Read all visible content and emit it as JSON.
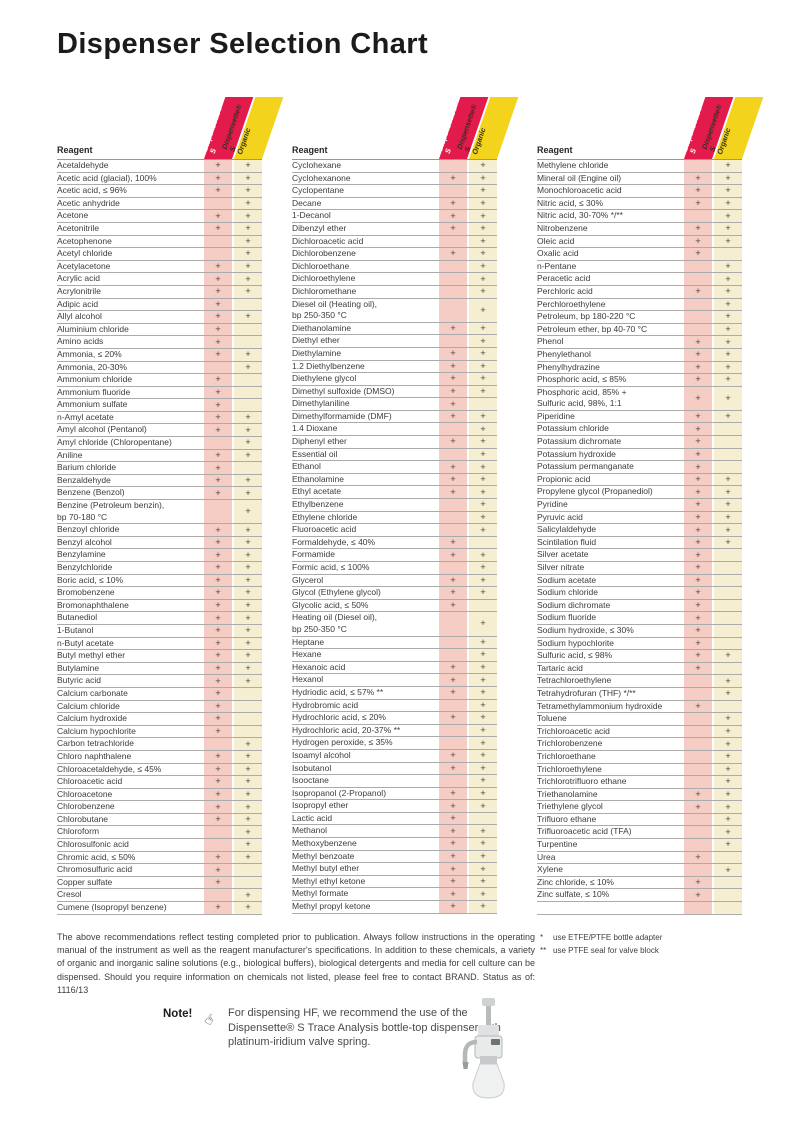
{
  "page": {
    "title": "Dispenser Selection Chart",
    "reagent_header": "Reagent",
    "banner_red": "Dispensette® S",
    "banner_yellow": "Dispensette® S\nOrganic",
    "footer_paragraph": "The above recommendations reflect testing completed prior to publication. Always follow instructions in the operating manual of the instrument as well as the reagent manufacturer's specifications. In addition to these chemicals, a variety of organic and inorganic saline solutions (e.g., biological buffers), biological detergents and media for cell culture can be dispensed. Should you require information on chemicals not listed, please feel free to contact BRAND. Status as of: 1116/13",
    "footnotes": [
      {
        "marker": "*",
        "text": "use ETFE/PTFE bottle adapter"
      },
      {
        "marker": "**",
        "text": "use PTFE seal for valve block"
      }
    ],
    "note": {
      "label": "Note!",
      "text": "For dispensing HF, we recommend the use of the Dispensette® S Trace Analysis bottle-top dispenser with platinum-iridium valve spring."
    }
  },
  "colors": {
    "banner_red": "#e31b4c",
    "banner_yellow": "#f3d31c",
    "tint_red": "#f5cdc5",
    "tint_yellow": "#f5eed1"
  },
  "tables": [
    {
      "rows": [
        [
          "Acetaldehyde",
          "+",
          "+"
        ],
        [
          "Acetic acid (glacial), 100%",
          "+",
          "+"
        ],
        [
          "Acetic acid, ≤ 96%",
          "+",
          "+"
        ],
        [
          "Acetic anhydride",
          "",
          "+"
        ],
        [
          "Acetone",
          "+",
          "+"
        ],
        [
          "Acetonitrile",
          "+",
          "+"
        ],
        [
          "Acetophenone",
          "",
          "+"
        ],
        [
          "Acetyl chloride",
          "",
          "+"
        ],
        [
          "Acetylacetone",
          "+",
          "+"
        ],
        [
          "Acrylic acid",
          "+",
          "+"
        ],
        [
          "Acrylonitrile",
          "+",
          "+"
        ],
        [
          "Adipic acid",
          "+",
          ""
        ],
        [
          "Allyl alcohol",
          "+",
          "+"
        ],
        [
          "Aluminium chloride",
          "+",
          ""
        ],
        [
          "Amino acids",
          "+",
          ""
        ],
        [
          "Ammonia, ≤ 20%",
          "+",
          "+"
        ],
        [
          "Ammonia, 20-30%",
          "",
          "+"
        ],
        [
          "Ammonium chloride",
          "+",
          ""
        ],
        [
          "Ammonium fluoride",
          "+",
          ""
        ],
        [
          "Ammonium sulfate",
          "+",
          ""
        ],
        [
          "n-Amyl acetate",
          "+",
          "+"
        ],
        [
          "Amyl alcohol (Pentanol)",
          "+",
          "+"
        ],
        [
          "Amyl chloride (Chloropentane)",
          "",
          "+"
        ],
        [
          "Aniline",
          "+",
          "+"
        ],
        [
          "Barium chloride",
          "+",
          ""
        ],
        [
          "Benzaldehyde",
          "+",
          "+"
        ],
        [
          "Benzene (Benzol)",
          "+",
          "+"
        ],
        [
          "Benzine (Petroleum benzin),\nbp 70-180 °C",
          "",
          "+"
        ],
        [
          "Benzoyl chloride",
          "+",
          "+"
        ],
        [
          "Benzyl alcohol",
          "+",
          "+"
        ],
        [
          "Benzylamine",
          "+",
          "+"
        ],
        [
          "Benzylchloride",
          "+",
          "+"
        ],
        [
          "Boric acid, ≤ 10%",
          "+",
          "+"
        ],
        [
          "Bromobenzene",
          "+",
          "+"
        ],
        [
          "Bromonaphthalene",
          "+",
          "+"
        ],
        [
          "Butanediol",
          "+",
          "+"
        ],
        [
          "1-Butanol",
          "+",
          "+"
        ],
        [
          "n-Butyl acetate",
          "+",
          "+"
        ],
        [
          "Butyl methyl ether",
          "+",
          "+"
        ],
        [
          "Butylamine",
          "+",
          "+"
        ],
        [
          "Butyric acid",
          "+",
          "+"
        ],
        [
          "Calcium carbonate",
          "+",
          ""
        ],
        [
          "Calcium chloride",
          "+",
          ""
        ],
        [
          "Calcium hydroxide",
          "+",
          ""
        ],
        [
          "Calcium hypochlorite",
          "+",
          ""
        ],
        [
          "Carbon tetrachloride",
          "",
          "+"
        ],
        [
          "Chloro naphthalene",
          "+",
          "+"
        ],
        [
          "Chloroacetaldehyde, ≤ 45%",
          "+",
          "+"
        ],
        [
          "Chloroacetic acid",
          "+",
          "+"
        ],
        [
          "Chloroacetone",
          "+",
          "+"
        ],
        [
          "Chlorobenzene",
          "+",
          "+"
        ],
        [
          "Chlorobutane",
          "+",
          "+"
        ],
        [
          "Chloroform",
          "",
          "+"
        ],
        [
          "Chlorosulfonic acid",
          "",
          "+"
        ],
        [
          "Chromic acid, ≤ 50%",
          "+",
          "+"
        ],
        [
          "Chromosulfuric acid",
          "+",
          ""
        ],
        [
          "Copper sulfate",
          "+",
          ""
        ],
        [
          "Cresol",
          "",
          "+"
        ],
        [
          "Cumene (Isopropyl benzene)",
          "+",
          "+"
        ]
      ]
    },
    {
      "rows": [
        [
          "Cyclohexane",
          "",
          "+"
        ],
        [
          "Cyclohexanone",
          "+",
          "+"
        ],
        [
          "Cyclopentane",
          "",
          "+"
        ],
        [
          "Decane",
          "+",
          "+"
        ],
        [
          "1-Decanol",
          "+",
          "+"
        ],
        [
          "Dibenzyl ether",
          "+",
          "+"
        ],
        [
          "Dichloroacetic acid",
          "",
          "+"
        ],
        [
          "Dichlorobenzene",
          "+",
          "+"
        ],
        [
          "Dichloroethane",
          "",
          "+"
        ],
        [
          "Dichloroethylene",
          "",
          "+"
        ],
        [
          "Dichloromethane",
          "",
          "+"
        ],
        [
          "Diesel oil (Heating oil),\nbp 250-350 °C",
          "",
          "+"
        ],
        [
          "Diethanolamine",
          "+",
          "+"
        ],
        [
          "Diethyl ether",
          "",
          "+"
        ],
        [
          "Diethylamine",
          "+",
          "+"
        ],
        [
          "1.2 Diethylbenzene",
          "+",
          "+"
        ],
        [
          "Diethylene glycol",
          "+",
          "+"
        ],
        [
          "Dimethyl sulfoxide (DMSO)",
          "+",
          "+"
        ],
        [
          "Dimethylaniline",
          "+",
          ""
        ],
        [
          "Dimethylformamide (DMF)",
          "+",
          "+"
        ],
        [
          "1.4 Dioxane",
          "",
          "+"
        ],
        [
          "Diphenyl ether",
          "+",
          "+"
        ],
        [
          "Essential oil",
          "",
          "+"
        ],
        [
          "Ethanol",
          "+",
          "+"
        ],
        [
          "Ethanolamine",
          "+",
          "+"
        ],
        [
          "Ethyl acetate",
          "+",
          "+"
        ],
        [
          "Ethylbenzene",
          "",
          "+"
        ],
        [
          "Ethylene chloride",
          "",
          "+"
        ],
        [
          "Fluoroacetic acid",
          "",
          "+"
        ],
        [
          "Formaldehyde, ≤ 40%",
          "+",
          ""
        ],
        [
          "Formamide",
          "+",
          "+"
        ],
        [
          "Formic acid, ≤ 100%",
          "",
          "+"
        ],
        [
          "Glycerol",
          "+",
          "+"
        ],
        [
          "Glycol (Ethylene glycol)",
          "+",
          "+"
        ],
        [
          "Glycolic acid, ≤ 50%",
          "+",
          ""
        ],
        [
          "Heating oil (Diesel oil),\nbp 250-350 °C",
          "",
          "+"
        ],
        [
          "Heptane",
          "",
          "+"
        ],
        [
          "Hexane",
          "",
          "+"
        ],
        [
          "Hexanoic acid",
          "+",
          "+"
        ],
        [
          "Hexanol",
          "+",
          "+"
        ],
        [
          "Hydriodic acid, ≤ 57% **",
          "+",
          "+"
        ],
        [
          "Hydrobromic acid",
          "",
          "+"
        ],
        [
          "Hydrochloric acid, ≤ 20%",
          "+",
          "+"
        ],
        [
          "Hydrochloric acid, 20-37% **",
          "",
          "+"
        ],
        [
          "Hydrogen peroxide, ≤ 35%",
          "",
          "+"
        ],
        [
          "Isoamyl alcohol",
          "+",
          "+"
        ],
        [
          "Isobutanol",
          "+",
          "+"
        ],
        [
          "Isooctane",
          "",
          "+"
        ],
        [
          "Isopropanol (2-Propanol)",
          "+",
          "+"
        ],
        [
          "Isopropyl ether",
          "+",
          "+"
        ],
        [
          "Lactic acid",
          "+",
          ""
        ],
        [
          "Methanol",
          "+",
          "+"
        ],
        [
          "Methoxybenzene",
          "+",
          "+"
        ],
        [
          "Methyl benzoate",
          "+",
          "+"
        ],
        [
          "Methyl butyl ether",
          "+",
          "+"
        ],
        [
          "Methyl ethyl ketone",
          "+",
          "+"
        ],
        [
          "Methyl formate",
          "+",
          "+"
        ],
        [
          "Methyl propyl ketone",
          "+",
          "+"
        ]
      ]
    },
    {
      "rows": [
        [
          "Methylene chloride",
          "",
          "+"
        ],
        [
          "Mineral oil (Engine oil)",
          "+",
          "+"
        ],
        [
          "Monochloroacetic acid",
          "+",
          "+"
        ],
        [
          "Nitric acid, ≤ 30%",
          "+",
          "+"
        ],
        [
          "Nitric acid, 30-70% */**",
          "",
          "+"
        ],
        [
          "Nitrobenzene",
          "+",
          "+"
        ],
        [
          "Oleic acid",
          "+",
          "+"
        ],
        [
          "Oxalic acid",
          "+",
          ""
        ],
        [
          "n-Pentane",
          "",
          "+"
        ],
        [
          "Peracetic acid",
          "",
          "+"
        ],
        [
          "Perchloric acid",
          "+",
          "+"
        ],
        [
          "Perchloroethylene",
          "",
          "+"
        ],
        [
          "Petroleum, bp 180-220 °C",
          "",
          "+"
        ],
        [
          "Petroleum ether, bp 40-70 °C",
          "",
          "+"
        ],
        [
          "Phenol",
          "+",
          "+"
        ],
        [
          "Phenylethanol",
          "+",
          "+"
        ],
        [
          "Phenylhydrazine",
          "+",
          "+"
        ],
        [
          "Phosphoric acid, ≤ 85%",
          "+",
          "+"
        ],
        [
          "Phosphoric acid, 85% +\nSulfuric acid, 98%, 1:1",
          "+",
          "+"
        ],
        [
          "Piperidine",
          "+",
          "+"
        ],
        [
          "Potassium chloride",
          "+",
          ""
        ],
        [
          "Potassium dichromate",
          "+",
          ""
        ],
        [
          "Potassium hydroxide",
          "+",
          ""
        ],
        [
          "Potassium permanganate",
          "+",
          ""
        ],
        [
          "Propionic acid",
          "+",
          "+"
        ],
        [
          "Propylene glycol (Propanediol)",
          "+",
          "+"
        ],
        [
          "Pyridine",
          "+",
          "+"
        ],
        [
          "Pyruvic acid",
          "+",
          "+"
        ],
        [
          "Salicylaldehyde",
          "+",
          "+"
        ],
        [
          "Scintilation fluid",
          "+",
          "+"
        ],
        [
          "Silver acetate",
          "+",
          ""
        ],
        [
          "Silver nitrate",
          "+",
          ""
        ],
        [
          "Sodium acetate",
          "+",
          ""
        ],
        [
          "Sodium chloride",
          "+",
          ""
        ],
        [
          "Sodium dichromate",
          "+",
          ""
        ],
        [
          "Sodium fluoride",
          "+",
          ""
        ],
        [
          "Sodium hydroxide, ≤ 30%",
          "+",
          ""
        ],
        [
          "Sodium hypochlorite",
          "+",
          ""
        ],
        [
          "Sulfuric acid, ≤ 98%",
          "+",
          "+"
        ],
        [
          "Tartaric acid",
          "+",
          ""
        ],
        [
          "Tetrachloroethylene",
          "",
          "+"
        ],
        [
          "Tetrahydrofuran (THF) */**",
          "",
          "+"
        ],
        [
          "Tetramethylammonium hydroxide",
          "+",
          ""
        ],
        [
          "Toluene",
          "",
          "+"
        ],
        [
          "Trichloroacetic acid",
          "",
          "+"
        ],
        [
          "Trichlorobenzene",
          "",
          "+"
        ],
        [
          "Trichloroethane",
          "",
          "+"
        ],
        [
          "Trichloroethylene",
          "",
          "+"
        ],
        [
          "Trichlorotrifluoro ethane",
          "",
          "+"
        ],
        [
          "Triethanolamine",
          "+",
          "+"
        ],
        [
          "Triethylene glycol",
          "+",
          "+"
        ],
        [
          "Trifluoro ethane",
          "",
          "+"
        ],
        [
          "Trifluoroacetic acid (TFA)",
          "",
          "+"
        ],
        [
          "Turpentine",
          "",
          "+"
        ],
        [
          "Urea",
          "+",
          ""
        ],
        [
          "Xylene",
          "",
          "+"
        ],
        [
          "Zinc chloride, ≤ 10%",
          "+",
          ""
        ],
        [
          "Zinc sulfate, ≤ 10%",
          "+",
          ""
        ],
        [
          "",
          "",
          ""
        ]
      ]
    }
  ]
}
